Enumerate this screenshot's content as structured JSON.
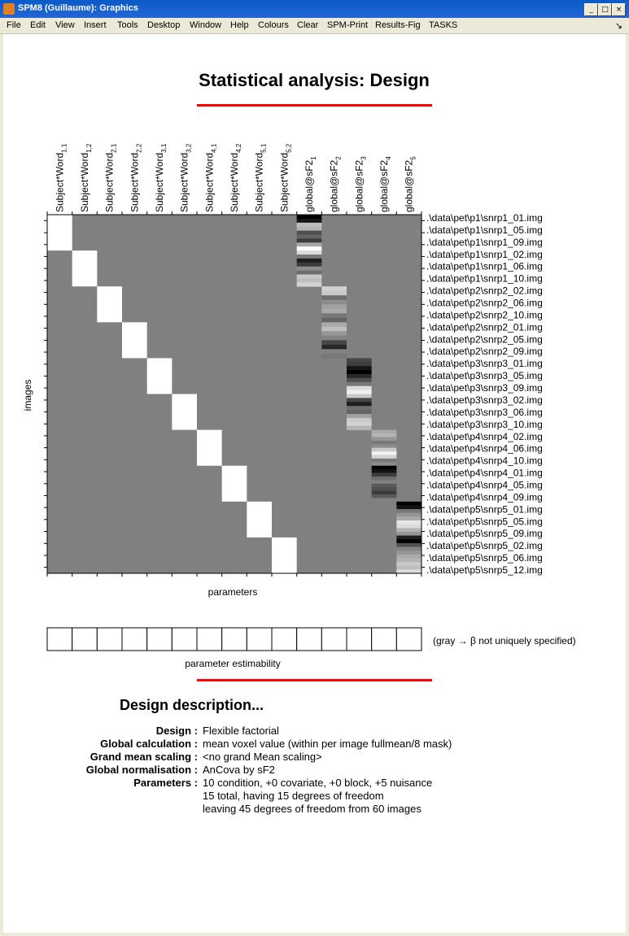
{
  "window": {
    "title": "SPM8 (Guillaume): Graphics",
    "buttons": [
      "_",
      "□",
      "×"
    ]
  },
  "menu": [
    "File",
    "Edit",
    "View",
    "Insert",
    "Tools",
    "Desktop",
    "Window",
    "Help",
    "Colours",
    "Clear",
    "SPM-Print",
    "Results-Fig",
    "TASKS"
  ],
  "figure": {
    "title": "Statistical analysis: Design",
    "images_label": "images",
    "parameters_label": "parameters",
    "estimability_label": "parameter estimability",
    "estimability_note": "(gray → β not uniquely specified)",
    "accent_color": "#ff0000",
    "gray_color": "#808080"
  },
  "design_matrix": {
    "columns": [
      {
        "base": "Subject*Word",
        "sub": "1,1"
      },
      {
        "base": "Subject*Word",
        "sub": "1,2"
      },
      {
        "base": "Subject*Word",
        "sub": "2,1"
      },
      {
        "base": "Subject*Word",
        "sub": "2,2"
      },
      {
        "base": "Subject*Word",
        "sub": "3,1"
      },
      {
        "base": "Subject*Word",
        "sub": "3,2"
      },
      {
        "base": "Subject*Word",
        "sub": "4,1"
      },
      {
        "base": "Subject*Word",
        "sub": "4,2"
      },
      {
        "base": "Subject*Word",
        "sub": "5,1"
      },
      {
        "base": "Subject*Word",
        "sub": "5,2"
      },
      {
        "base": "global@sF2",
        "sub": "1"
      },
      {
        "base": "global@sF2",
        "sub": "2"
      },
      {
        "base": "global@sF2",
        "sub": "3"
      },
      {
        "base": "global@sF2",
        "sub": "4"
      },
      {
        "base": "global@sF2",
        "sub": "5"
      }
    ],
    "row_labels": [
      ".\\data\\pet\\p1\\snrp1_01.img",
      ".\\data\\pet\\p1\\snrp1_05.img",
      ".\\data\\pet\\p1\\snrp1_09.img",
      ".\\data\\pet\\p1\\snrp1_02.img",
      ".\\data\\pet\\p1\\snrp1_06.img",
      ".\\data\\pet\\p1\\snrp1_10.img",
      ".\\data\\pet\\p2\\snrp2_02.img",
      ".\\data\\pet\\p2\\snrp2_06.img",
      ".\\data\\pet\\p2\\snrp2_10.img",
      ".\\data\\pet\\p2\\snrp2_01.img",
      ".\\data\\pet\\p2\\snrp2_05.img",
      ".\\data\\pet\\p2\\snrp2_09.img",
      ".\\data\\pet\\p3\\snrp3_01.img",
      ".\\data\\pet\\p3\\snrp3_05.img",
      ".\\data\\pet\\p3\\snrp3_09.img",
      ".\\data\\pet\\p3\\snrp3_02.img",
      ".\\data\\pet\\p3\\snrp3_06.img",
      ".\\data\\pet\\p3\\snrp3_10.img",
      ".\\data\\pet\\p4\\snrp4_02.img",
      ".\\data\\pet\\p4\\snrp4_06.img",
      ".\\data\\pet\\p4\\snrp4_10.img",
      ".\\data\\pet\\p4\\snrp4_01.img",
      ".\\data\\pet\\p4\\snrp4_05.img",
      ".\\data\\pet\\p4\\snrp4_09.img",
      ".\\data\\pet\\p5\\snrp5_01.img",
      ".\\data\\pet\\p5\\snrp5_05.img",
      ".\\data\\pet\\p5\\snrp5_09.img",
      ".\\data\\pet\\p5\\snrp5_02.img",
      ".\\data\\pet\\p5\\snrp5_06.img",
      ".\\data\\pet\\p5\\snrp5_12.img"
    ],
    "num_images": 60,
    "global_shades": [
      [
        0,
        20,
        190,
        180,
        80,
        100,
        60,
        170,
        255,
        220,
        120,
        30,
        60,
        140,
        110,
        200,
        190,
        210
      ],
      [
        210,
        200,
        110,
        140,
        160,
        170,
        120,
        100,
        170,
        190,
        150,
        130,
        70,
        40,
        130,
        120
      ],
      [
        70,
        60,
        20,
        0,
        40,
        80,
        120,
        220,
        240,
        200,
        70,
        30,
        110,
        100,
        160,
        200,
        210,
        180
      ],
      [
        170,
        180,
        150,
        120,
        140,
        200,
        240,
        210,
        120,
        140,
        0,
        20,
        60,
        110,
        130,
        90,
        80,
        60,
        90,
        130
      ],
      [
        0,
        20,
        120,
        150,
        170,
        230,
        220,
        180,
        150,
        30,
        0,
        80,
        130,
        150,
        170,
        180,
        200,
        190,
        220
      ]
    ]
  },
  "description": {
    "heading": "Design description...",
    "items": [
      {
        "key": "Design :",
        "value": "Flexible factorial"
      },
      {
        "key": "Global calculation :",
        "value": "mean voxel value (within per image fullmean/8 mask)"
      },
      {
        "key": "Grand mean scaling :",
        "value": "<no grand Mean scaling>"
      },
      {
        "key": "Global normalisation :",
        "value": "AnCova by sF2"
      },
      {
        "key": "Parameters :",
        "value": "10 condition, +0 covariate, +0 block, +5 nuisance"
      }
    ],
    "extra_lines": [
      "15 total, having 15 degrees of freedom",
      "leaving 45 degrees of freedom from 60 images"
    ]
  }
}
